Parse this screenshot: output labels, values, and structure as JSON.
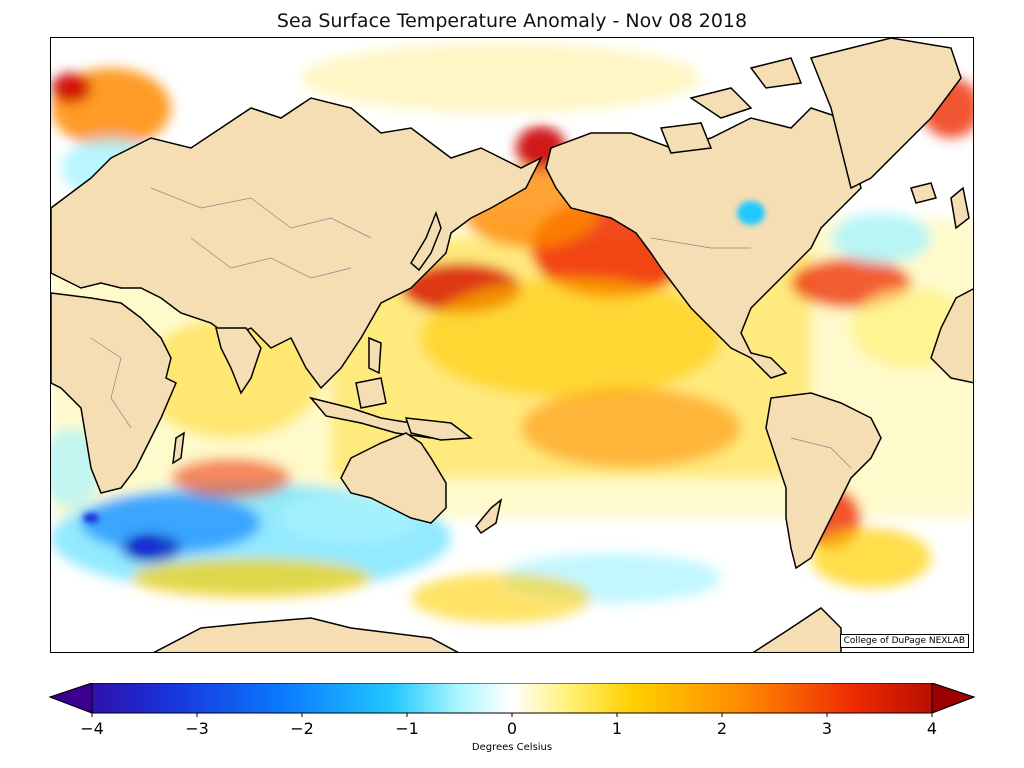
{
  "title": "Sea Surface Temperature Anomaly - Nov 08 2018",
  "credit": "College of DuPage NEXLAB",
  "colorbar": {
    "label": "Degrees Celsius",
    "min": -4,
    "max": 4,
    "ticks": [
      {
        "value": -4,
        "label": "−4"
      },
      {
        "value": -3,
        "label": "−3"
      },
      {
        "value": -2,
        "label": "−2"
      },
      {
        "value": -1,
        "label": "−1"
      },
      {
        "value": 0,
        "label": "0"
      },
      {
        "value": 1,
        "label": "1"
      },
      {
        "value": 2,
        "label": "2"
      },
      {
        "value": 3,
        "label": "3"
      },
      {
        "value": 4,
        "label": "4"
      }
    ],
    "extend": "both",
    "colors": [
      "#3b0090",
      "#1a2fd6",
      "#0a78ff",
      "#22c8ff",
      "#a8f4ff",
      "#ffffff",
      "#fff27a",
      "#ffd000",
      "#ff8a00",
      "#ee2a00",
      "#9c0000"
    ]
  },
  "map": {
    "projection": "Pacific-centered world map",
    "land_color": "#f5deb3",
    "ocean_default": "#ffffff"
  }
}
